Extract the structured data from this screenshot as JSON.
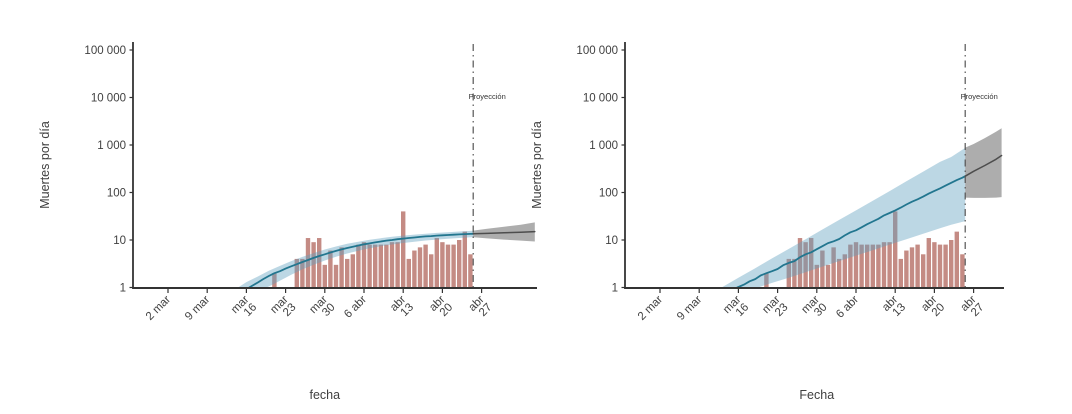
{
  "figure": {
    "background": "#ffffff",
    "panels": [
      "left",
      "right"
    ]
  },
  "chart_data": [
    {
      "panel": "left",
      "type": "bar",
      "title": "",
      "xlabel": "fecha",
      "ylabel": "Muertes por día",
      "log_scale_y": true,
      "ylim": [
        1,
        100000
      ],
      "ytick_labels": [
        "1",
        "10",
        "100",
        "1 000",
        "10 000",
        "100 000"
      ],
      "ytick_values": [
        1,
        10,
        100,
        1000,
        10000,
        100000
      ],
      "xticks": [
        {
          "d": 0,
          "label": [
            "2 mar"
          ]
        },
        {
          "d": 7,
          "label": [
            "9 mar"
          ]
        },
        {
          "d": 14,
          "label": [
            "mar",
            "16"
          ]
        },
        {
          "d": 21,
          "label": [
            "mar",
            "23"
          ]
        },
        {
          "d": 28,
          "label": [
            "mar",
            "30"
          ]
        },
        {
          "d": 35,
          "label": [
            "6 abr"
          ]
        },
        {
          "d": 42,
          "label": [
            "abr",
            "13"
          ]
        },
        {
          "d": 49,
          "label": [
            "abr",
            "20"
          ]
        },
        {
          "d": 56,
          "label": [
            "abr",
            "27"
          ]
        }
      ],
      "projection_label": "Proyección",
      "projection_start_d": 54.5,
      "bars": {
        "first_d": 19,
        "dates": [
          "21 mar",
          "22 mar",
          "23 mar",
          "24 mar",
          "25 mar",
          "26 mar",
          "27 mar",
          "28 mar",
          "29 mar",
          "30 mar",
          "31 mar",
          "1 abr",
          "2 abr",
          "3 abr",
          "4 abr",
          "5 abr",
          "6 abr",
          "7 abr",
          "8 abr",
          "9 abr",
          "10 abr",
          "11 abr",
          "12 abr",
          "13 abr",
          "14 abr",
          "15 abr",
          "16 abr",
          "17 abr",
          "18 abr",
          "19 abr",
          "20 abr",
          "21 abr",
          "22 abr",
          "23 abr",
          "24 abr",
          "25 abr"
        ],
        "values": [
          2,
          1,
          1,
          1,
          4,
          4,
          11,
          9,
          11,
          3,
          6,
          3,
          7,
          4,
          5,
          8,
          9,
          8,
          8,
          8,
          8,
          9,
          9,
          40,
          4,
          6,
          7,
          8,
          5,
          11,
          9,
          8,
          8,
          10,
          15,
          5
        ]
      },
      "fit_line": [
        [
          14.5,
          1.0
        ],
        [
          15,
          1.08
        ],
        [
          16,
          1.27
        ],
        [
          17,
          1.5
        ],
        [
          18,
          1.75
        ],
        [
          19,
          2.0
        ],
        [
          20,
          2.2
        ],
        [
          21,
          2.5
        ],
        [
          22,
          2.8
        ],
        [
          23,
          3.1
        ],
        [
          24,
          3.45
        ],
        [
          25,
          3.8
        ],
        [
          26,
          4.2
        ],
        [
          27,
          4.6
        ],
        [
          28,
          5.0
        ],
        [
          29,
          5.45
        ],
        [
          30,
          5.9
        ],
        [
          31,
          6.35
        ],
        [
          32,
          6.8
        ],
        [
          33,
          7.2
        ],
        [
          34,
          7.65
        ],
        [
          35,
          8.1
        ],
        [
          36,
          8.5
        ],
        [
          37,
          8.9
        ],
        [
          38,
          9.3
        ],
        [
          39,
          9.7
        ],
        [
          40,
          10.0
        ],
        [
          41,
          10.4
        ],
        [
          42,
          10.7
        ],
        [
          43,
          11.0
        ],
        [
          44,
          11.3
        ],
        [
          45,
          11.6
        ],
        [
          46,
          11.9
        ],
        [
          47,
          12.1
        ],
        [
          48,
          12.35
        ],
        [
          49,
          12.55
        ],
        [
          50,
          12.75
        ],
        [
          51,
          12.95
        ],
        [
          52,
          13.1
        ],
        [
          53,
          13.3
        ],
        [
          54,
          13.45
        ],
        [
          54.5,
          13.5
        ]
      ],
      "fit_band_hi": [
        [
          12.5,
          1.0
        ],
        [
          14,
          1.3
        ],
        [
          16,
          1.7
        ],
        [
          18,
          2.25
        ],
        [
          20,
          2.85
        ],
        [
          22,
          3.6
        ],
        [
          24,
          4.4
        ],
        [
          26,
          5.3
        ],
        [
          28,
          6.3
        ],
        [
          30,
          7.3
        ],
        [
          32,
          8.3
        ],
        [
          34,
          9.2
        ],
        [
          36,
          10.1
        ],
        [
          38,
          10.9
        ],
        [
          40,
          11.7
        ],
        [
          42,
          12.4
        ],
        [
          44,
          13.0
        ],
        [
          46,
          13.6
        ],
        [
          48,
          14.1
        ],
        [
          50,
          14.6
        ],
        [
          52,
          15.1
        ],
        [
          54.5,
          15.7
        ]
      ],
      "fit_band_lo": [
        [
          17.5,
          1.0
        ],
        [
          18,
          1.05
        ],
        [
          19,
          1.2
        ],
        [
          20,
          1.4
        ],
        [
          21,
          1.6
        ],
        [
          22,
          1.85
        ],
        [
          24,
          2.4
        ],
        [
          26,
          3.0
        ],
        [
          28,
          3.7
        ],
        [
          30,
          4.45
        ],
        [
          32,
          5.2
        ],
        [
          34,
          5.95
        ],
        [
          36,
          6.7
        ],
        [
          38,
          7.4
        ],
        [
          40,
          8.05
        ],
        [
          42,
          8.65
        ],
        [
          44,
          9.2
        ],
        [
          46,
          9.75
        ],
        [
          48,
          10.2
        ],
        [
          50,
          10.6
        ],
        [
          52,
          11.0
        ],
        [
          54.5,
          11.5
        ]
      ],
      "proj_line": [
        [
          54.5,
          13.5
        ],
        [
          57,
          13.8
        ],
        [
          60,
          14.2
        ],
        [
          63,
          14.6
        ],
        [
          65.5,
          15.0
        ]
      ],
      "proj_band_hi": [
        [
          54.5,
          15.8
        ],
        [
          57,
          17.2
        ],
        [
          60,
          19.0
        ],
        [
          63,
          21.0
        ],
        [
          65.5,
          23.5
        ]
      ],
      "proj_band_lo": [
        [
          54.5,
          11.4
        ],
        [
          57,
          10.8
        ],
        [
          60,
          10.2
        ],
        [
          63,
          9.7
        ],
        [
          65.5,
          9.3
        ]
      ]
    },
    {
      "panel": "right",
      "type": "bar",
      "title": "",
      "xlabel": "Fecha",
      "ylabel": "Muertes por día",
      "log_scale_y": true,
      "ylim": [
        1,
        100000
      ],
      "ytick_labels": [
        "1",
        "10",
        "100",
        "1 000",
        "10 000",
        "100 000"
      ],
      "ytick_values": [
        1,
        10,
        100,
        1000,
        10000,
        100000
      ],
      "xticks": [
        {
          "d": 0,
          "label": [
            "2 mar"
          ]
        },
        {
          "d": 7,
          "label": [
            "9 mar"
          ]
        },
        {
          "d": 14,
          "label": [
            "mar",
            "16"
          ]
        },
        {
          "d": 21,
          "label": [
            "mar",
            "23"
          ]
        },
        {
          "d": 28,
          "label": [
            "mar",
            "30"
          ]
        },
        {
          "d": 35,
          "label": [
            "6 abr"
          ]
        },
        {
          "d": 42,
          "label": [
            "abr",
            "13"
          ]
        },
        {
          "d": 49,
          "label": [
            "abr",
            "20"
          ]
        },
        {
          "d": 56,
          "label": [
            "abr",
            "27"
          ]
        }
      ],
      "projection_label": "Proyección",
      "projection_start_d": 54.5,
      "bars": {
        "first_d": 19,
        "dates": [
          "21 mar",
          "22 mar",
          "23 mar",
          "24 mar",
          "25 mar",
          "26 mar",
          "27 mar",
          "28 mar",
          "29 mar",
          "30 mar",
          "31 mar",
          "1 abr",
          "2 abr",
          "3 abr",
          "4 abr",
          "5 abr",
          "6 abr",
          "7 abr",
          "8 abr",
          "9 abr",
          "10 abr",
          "11 abr",
          "12 abr",
          "13 abr",
          "14 abr",
          "15 abr",
          "16 abr",
          "17 abr",
          "18 abr",
          "19 abr",
          "20 abr",
          "21 abr",
          "22 abr",
          "23 abr",
          "24 abr",
          "25 abr"
        ],
        "values": [
          2,
          1,
          1,
          1,
          4,
          4,
          11,
          9,
          11,
          3,
          6,
          3,
          7,
          4,
          5,
          8,
          9,
          8,
          8,
          8,
          8,
          9,
          9,
          40,
          4,
          6,
          7,
          8,
          5,
          11,
          9,
          8,
          8,
          10,
          15,
          5
        ]
      },
      "fit_line": [
        [
          13.8,
          1.0
        ],
        [
          15,
          1.15
        ],
        [
          16,
          1.35
        ],
        [
          17,
          1.5
        ],
        [
          18,
          1.8
        ],
        [
          19,
          2.0
        ],
        [
          20,
          2.2
        ],
        [
          21,
          2.45
        ],
        [
          22,
          2.95
        ],
        [
          23,
          3.3
        ],
        [
          24,
          3.6
        ],
        [
          25,
          4.35
        ],
        [
          26,
          5.0
        ],
        [
          27,
          5.5
        ],
        [
          28,
          6.4
        ],
        [
          29,
          7.4
        ],
        [
          30,
          8.6
        ],
        [
          31,
          9.4
        ],
        [
          32,
          10.5
        ],
        [
          33,
          12.5
        ],
        [
          34,
          14.5
        ],
        [
          35,
          16.0
        ],
        [
          36,
          18.5
        ],
        [
          37,
          21.5
        ],
        [
          38,
          24.5
        ],
        [
          39,
          28
        ],
        [
          40,
          33
        ],
        [
          41,
          37
        ],
        [
          42,
          42
        ],
        [
          43,
          48
        ],
        [
          44,
          56
        ],
        [
          45,
          64
        ],
        [
          46,
          72
        ],
        [
          47,
          82
        ],
        [
          48,
          95
        ],
        [
          49,
          108
        ],
        [
          50,
          122
        ],
        [
          51,
          140
        ],
        [
          52,
          160
        ],
        [
          53,
          182
        ],
        [
          54,
          205
        ],
        [
          54.5,
          220
        ]
      ],
      "fit_band_hi": [
        [
          11,
          1.0
        ],
        [
          14,
          1.6
        ],
        [
          17,
          2.55
        ],
        [
          20,
          4.1
        ],
        [
          23,
          6.5
        ],
        [
          26,
          10.4
        ],
        [
          29,
          16.6
        ],
        [
          32,
          26.5
        ],
        [
          35,
          42
        ],
        [
          38,
          67
        ],
        [
          41,
          107
        ],
        [
          44,
          172
        ],
        [
          47,
          275
        ],
        [
          50,
          440
        ],
        [
          52,
          560
        ],
        [
          54.5,
          870
        ]
      ],
      "fit_band_lo": [
        [
          17.5,
          1.0
        ],
        [
          20,
          1.25
        ],
        [
          23,
          1.6
        ],
        [
          26,
          2.1
        ],
        [
          29,
          2.75
        ],
        [
          32,
          3.6
        ],
        [
          35,
          4.7
        ],
        [
          38,
          6.1
        ],
        [
          41,
          8.0
        ],
        [
          44,
          10.4
        ],
        [
          47,
          13.6
        ],
        [
          50,
          17.7
        ],
        [
          52,
          21
        ],
        [
          54.5,
          25
        ]
      ],
      "proj_line": [
        [
          54.5,
          220
        ],
        [
          56,
          280
        ],
        [
          58,
          370
        ],
        [
          60,
          500
        ],
        [
          61,
          600
        ]
      ],
      "proj_band_hi": [
        [
          54.5,
          880
        ],
        [
          56,
          1050
        ],
        [
          58,
          1400
        ],
        [
          60,
          1900
        ],
        [
          61,
          2250
        ]
      ],
      "proj_band_lo": [
        [
          54.5,
          78
        ],
        [
          56,
          77
        ],
        [
          58,
          77
        ],
        [
          60,
          78
        ],
        [
          61,
          80
        ]
      ]
    }
  ],
  "colors": {
    "bar_fill": "#c48b84",
    "fit_line": "#22768f",
    "fit_band": "#5f9fbe",
    "proj_line": "#4d4d4d",
    "proj_band": "#4a4a4a",
    "vline": "#555555",
    "axis": "#333333",
    "tick_text": "#404040",
    "proj_label_text": "#333333"
  }
}
